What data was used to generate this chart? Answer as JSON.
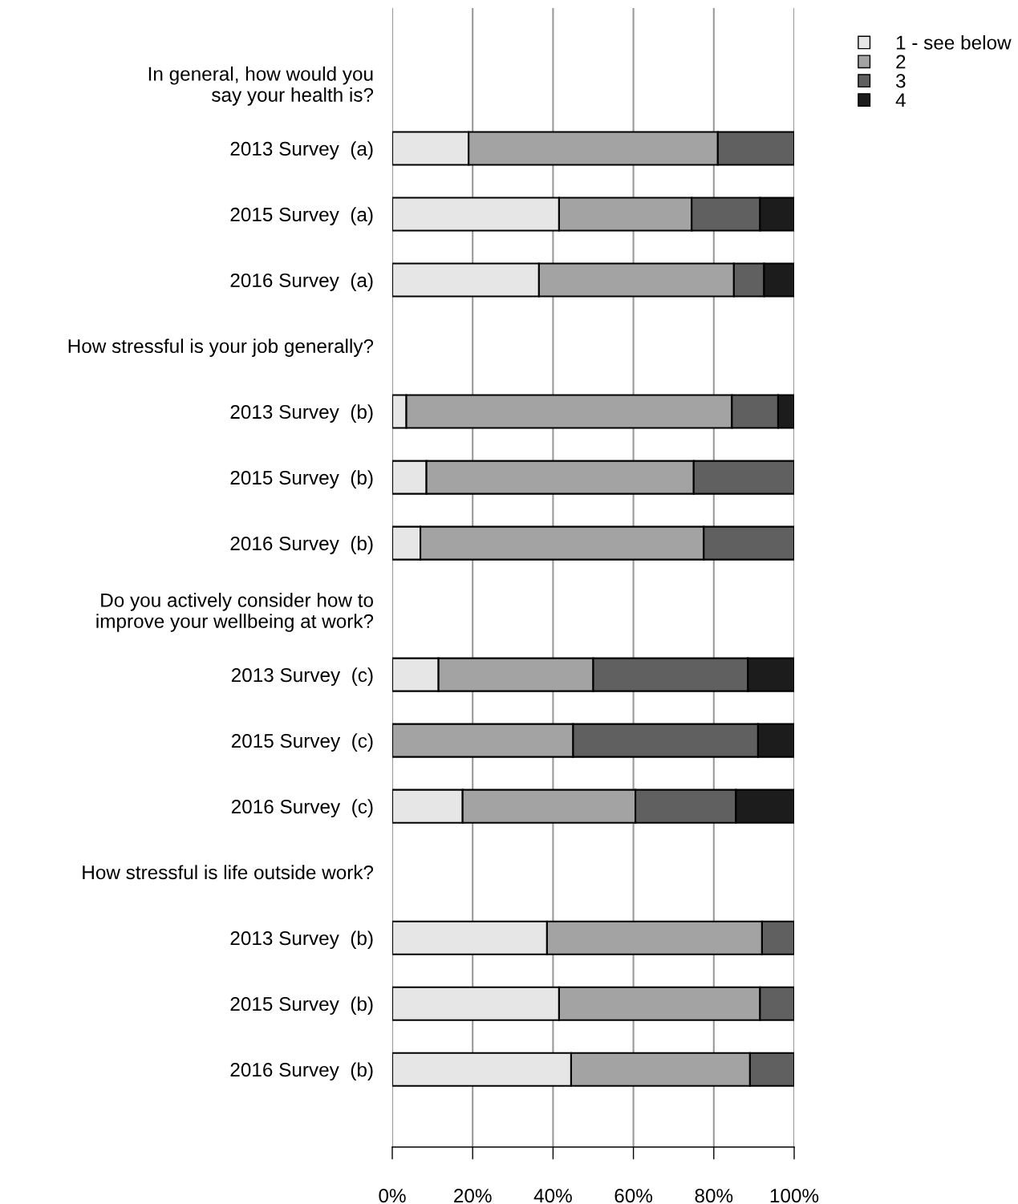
{
  "chart_data": {
    "type": "bar",
    "orientation": "horizontal",
    "stacked": true,
    "categories": [
      "In general, how would you\nsay your health is?",
      "2013 Survey  (a)",
      "2015 Survey  (a)",
      "2016 Survey  (a)",
      "How stressful is your job generally?",
      "2013 Survey  (b)",
      "2015 Survey  (b)",
      "2016 Survey  (b)",
      "Do you actively consider how to\nimprove your wellbeing at work?",
      "2013 Survey  (c)",
      "2015 Survey  (c)",
      "2016 Survey  (c)",
      "How stressful is life outside work?",
      "2013 Survey  (b)",
      "2015 Survey  (b)",
      "2016 Survey  (b)"
    ],
    "series": [
      {
        "name": "1 - see below",
        "color": "#e6e6e6",
        "values": [
          null,
          19,
          41.5,
          36.5,
          null,
          3.5,
          8.5,
          7,
          null,
          11.5,
          0,
          17.5,
          null,
          38.5,
          41.5,
          44.5
        ]
      },
      {
        "name": "2",
        "color": "#a3a3a3",
        "values": [
          null,
          62,
          33,
          48.5,
          null,
          81,
          66.5,
          70.5,
          null,
          38.5,
          45,
          43,
          null,
          53.5,
          50,
          44.5
        ]
      },
      {
        "name": "3",
        "color": "#606060",
        "values": [
          null,
          19,
          17,
          7.5,
          null,
          11.5,
          25,
          22.5,
          null,
          38.5,
          46,
          25,
          null,
          8,
          8.5,
          11
        ]
      },
      {
        "name": "4",
        "color": "#1c1c1c",
        "values": [
          null,
          0,
          8.5,
          7.5,
          null,
          4,
          0,
          0,
          null,
          11.5,
          9,
          14.5,
          null,
          0,
          0,
          0
        ]
      }
    ],
    "xlim": [
      0,
      100
    ],
    "xticks": [
      {
        "value": 0,
        "label": "0%"
      },
      {
        "value": 20,
        "label": "20%"
      },
      {
        "value": 40,
        "label": "40%"
      },
      {
        "value": 60,
        "label": "60%"
      },
      {
        "value": 80,
        "label": "80%"
      },
      {
        "value": 100,
        "label": "100%"
      }
    ],
    "grid": "x",
    "legend": "top right"
  }
}
